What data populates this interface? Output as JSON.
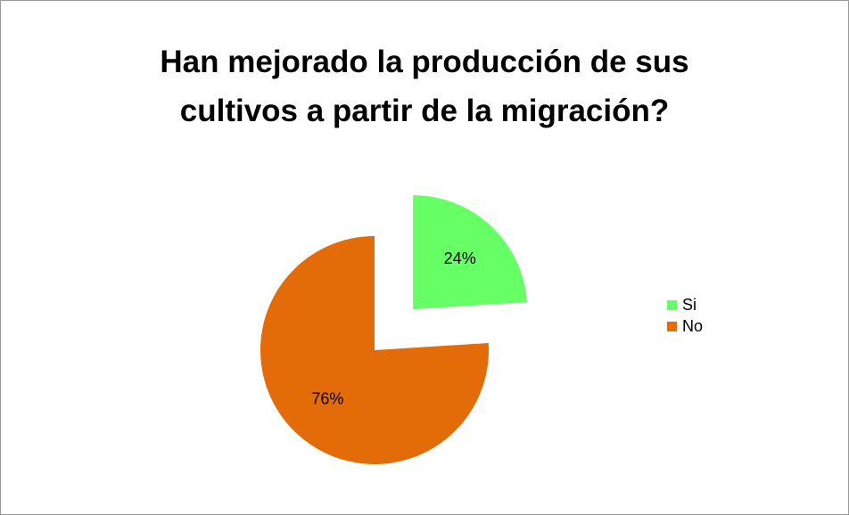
{
  "chart_data": {
    "type": "pie",
    "title": "Han mejorado la producción de sus cultivos a partir de la migración?",
    "categories": [
      "Si",
      "No"
    ],
    "values": [
      24,
      76
    ],
    "value_labels": [
      "24%",
      "76%"
    ],
    "colors": [
      "#66ff66",
      "#e36c09"
    ],
    "legend": "right"
  }
}
